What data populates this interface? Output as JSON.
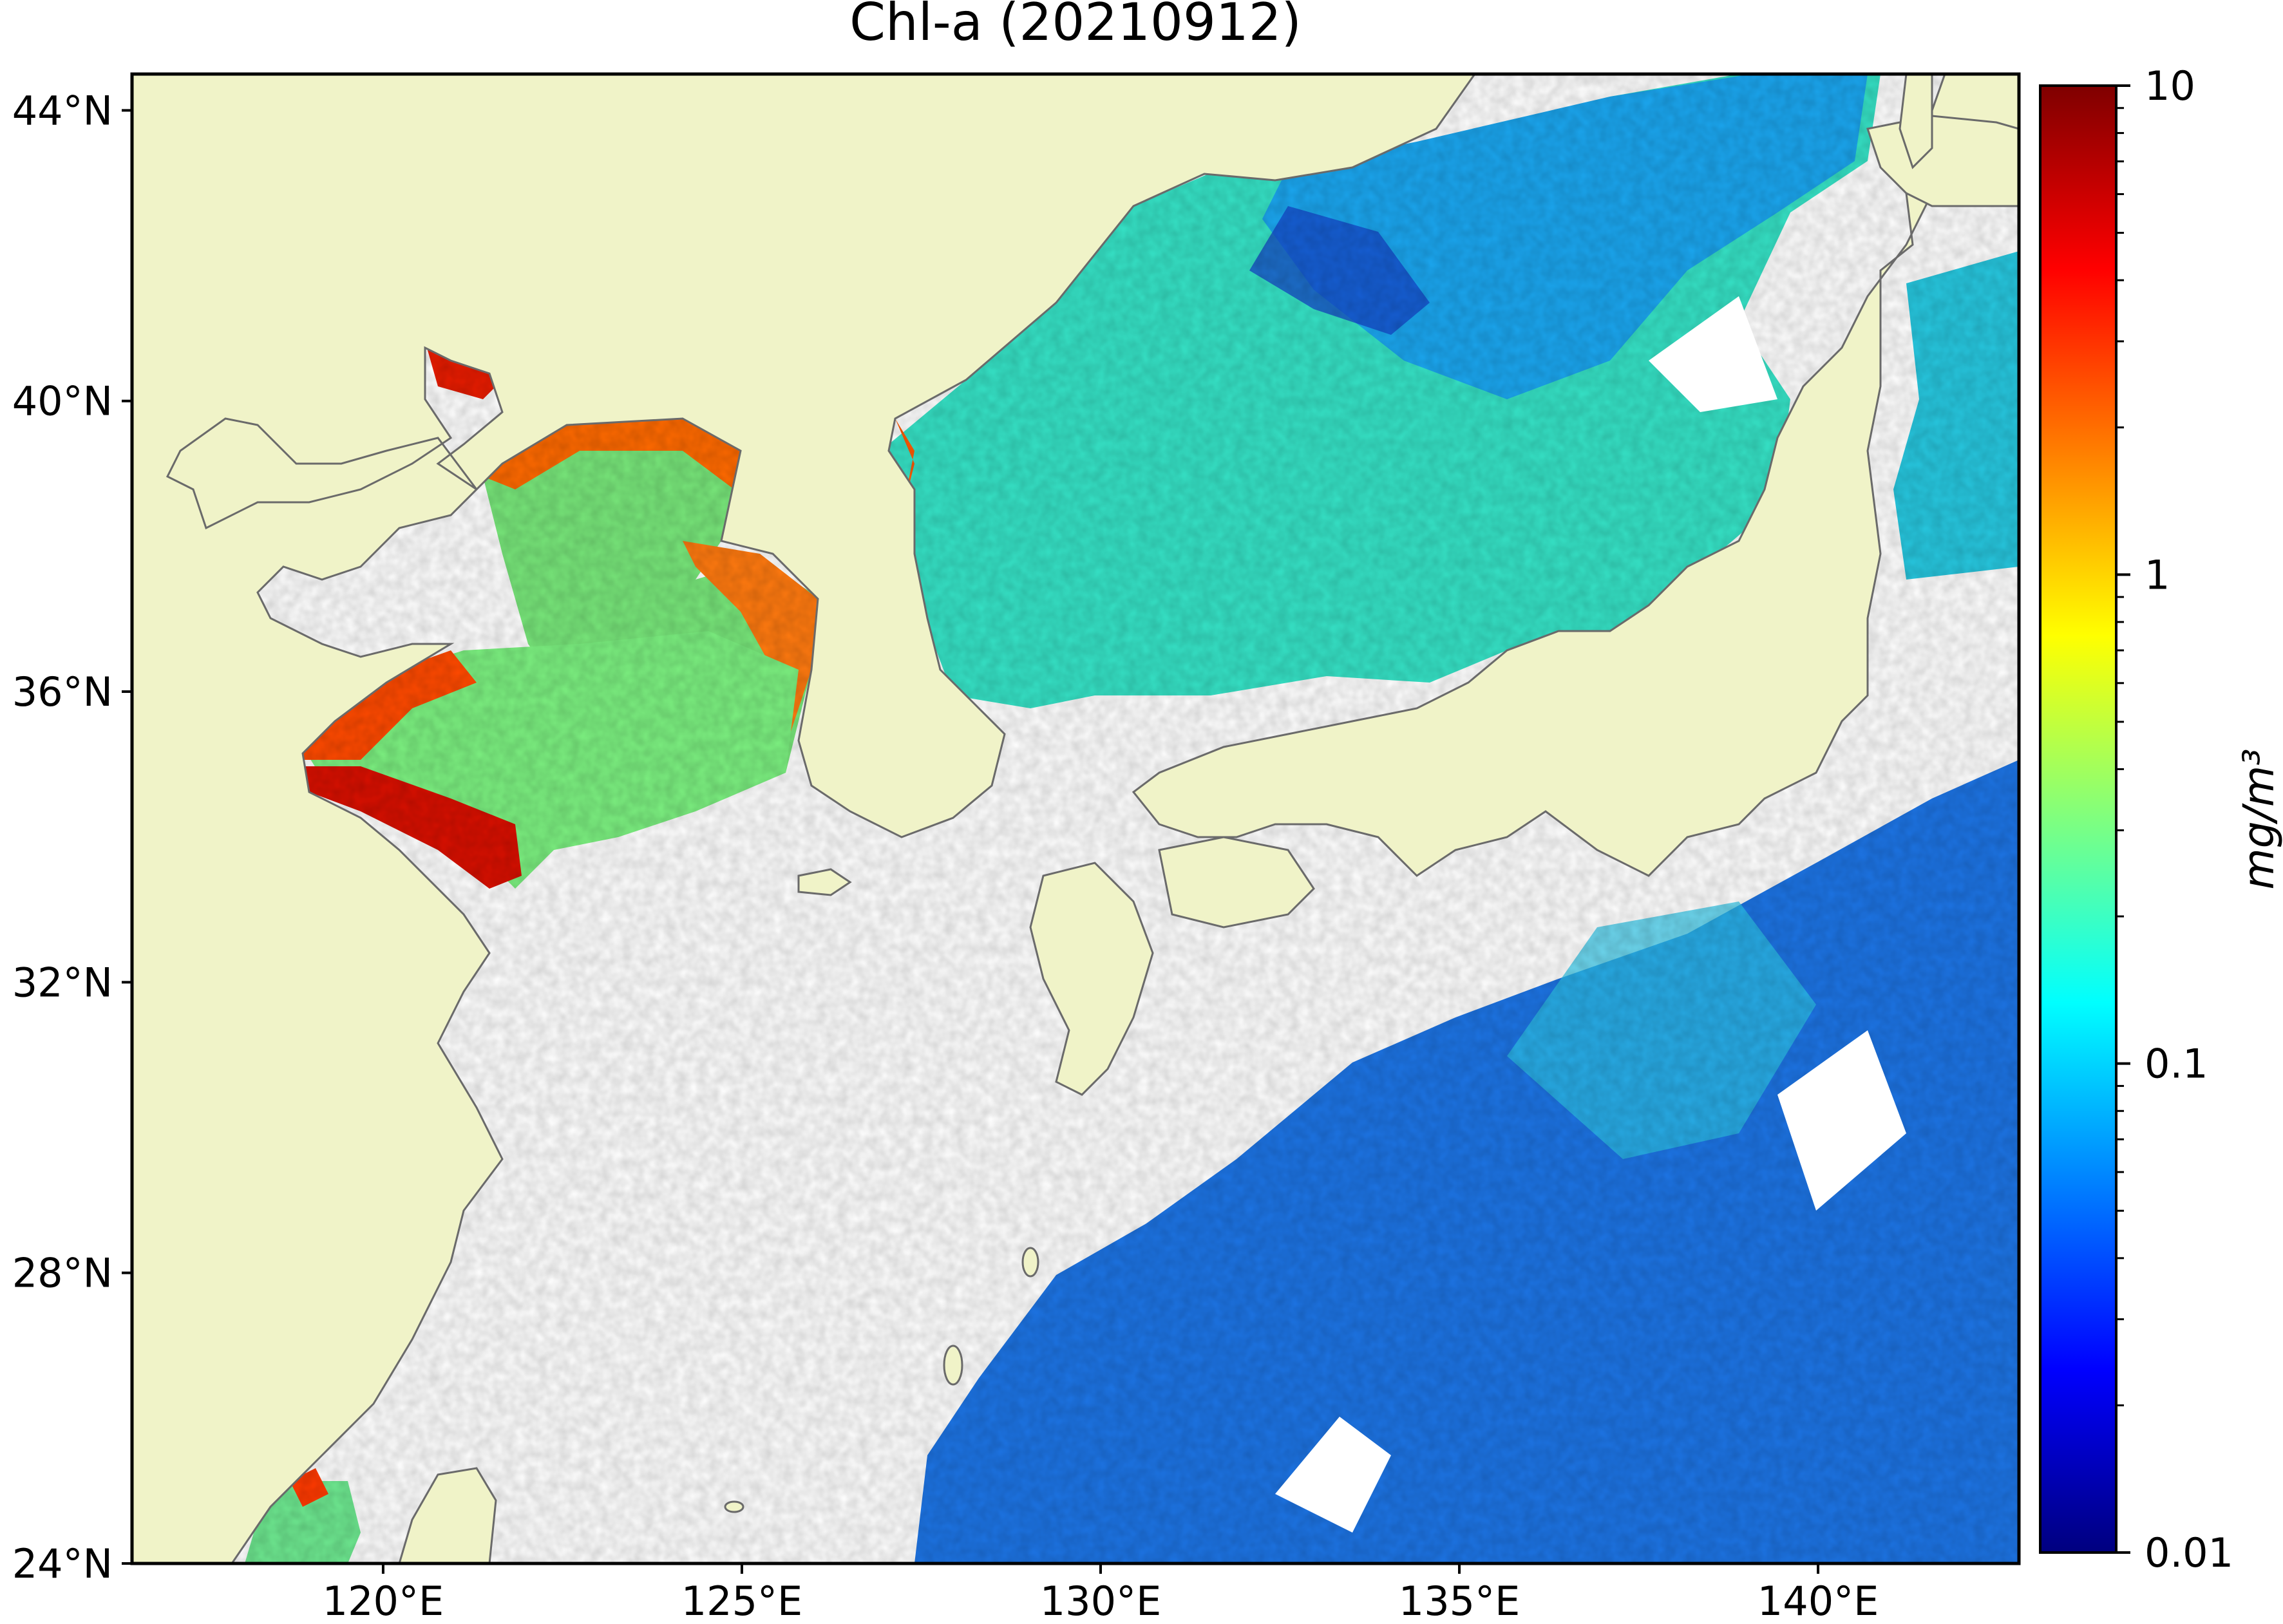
{
  "title": "Chl-a (20210912)",
  "map": {
    "lat_labels": [
      "44°N",
      "40°N",
      "36°N",
      "32°N",
      "28°N",
      "24°N"
    ],
    "lon_labels": [
      "120°E",
      "125°E",
      "130°E",
      "135°E",
      "140°E"
    ],
    "lat_range": [
      24,
      44.5
    ],
    "lon_range": [
      116.5,
      142.8
    ],
    "land_color": "#f0f3c8",
    "coast_color": "#6a6a6a",
    "no_data_color": "#ffffff"
  },
  "colorbar": {
    "label": "mg/m³",
    "scale": "log",
    "ticks": [
      "10",
      "1",
      "0.1",
      "0.01"
    ],
    "range": [
      0.01,
      10
    ],
    "colormap": "jet",
    "colors": [
      "#00007f",
      "#0000ff",
      "#007fff",
      "#00ffff",
      "#7fff7f",
      "#ffff00",
      "#ff7f00",
      "#ff0000",
      "#7f0000"
    ]
  }
}
